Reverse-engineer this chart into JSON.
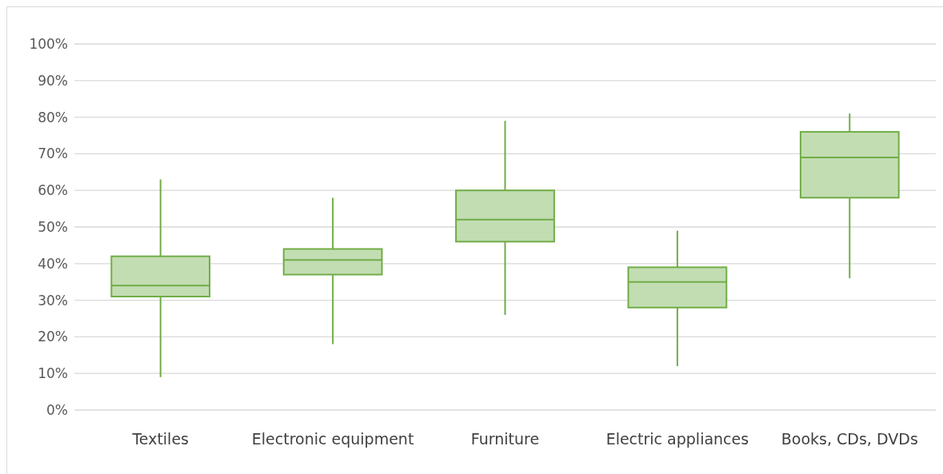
{
  "chart_data": {
    "type": "box",
    "categories": [
      "Textiles",
      "Electronic equipment",
      "Furniture",
      "Electric appliances",
      "Books, CDs, DVDs"
    ],
    "series": [
      {
        "color": "#70ad47",
        "boxes": [
          {
            "low": 9,
            "q1": 31,
            "median": 34,
            "q3": 42,
            "high": 63
          },
          {
            "low": 18,
            "q1": 37,
            "median": 41,
            "q3": 44,
            "high": 58
          },
          {
            "low": 26,
            "q1": 46,
            "median": 52,
            "q3": 60,
            "high": 79
          },
          {
            "low": 12,
            "q1": 28,
            "median": 35,
            "q3": 39,
            "high": 49
          },
          {
            "low": 36,
            "q1": 58,
            "median": 69,
            "q3": 76,
            "high": 81
          }
        ]
      }
    ],
    "ylim": [
      0,
      100
    ],
    "yticks": [
      {
        "value": 0,
        "label": "0%"
      },
      {
        "value": 10,
        "label": "10%"
      },
      {
        "value": 20,
        "label": "20%"
      },
      {
        "value": 30,
        "label": "30%"
      },
      {
        "value": 40,
        "label": "40%"
      },
      {
        "value": 50,
        "label": "50%"
      },
      {
        "value": 60,
        "label": "60%"
      },
      {
        "value": 70,
        "label": "70%"
      },
      {
        "value": 80,
        "label": "80%"
      },
      {
        "value": 90,
        "label": "90%"
      },
      {
        "value": 100,
        "label": "100%"
      }
    ],
    "grid": "y"
  }
}
